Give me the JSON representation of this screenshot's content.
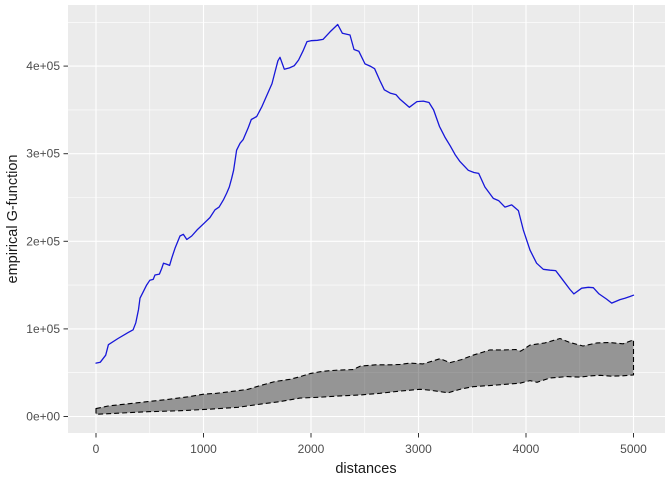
{
  "figure": {
    "background": "#ffffff",
    "panel_background": "#ebebeb",
    "gridline_color": "#ffffff",
    "tick_color": "#333333",
    "tick_label_color": "#4d4d4d"
  },
  "chart_data": {
    "type": "line",
    "title": "",
    "xlabel": "distances",
    "ylabel": "empirical G-function",
    "legend": "none",
    "grid": "major+minor",
    "xlim": [
      -250,
      5250
    ],
    "ylim": [
      -22000,
      470000
    ],
    "x_ticks": [
      0,
      1000,
      2000,
      3000,
      4000,
      5000
    ],
    "x_tick_labels": [
      "0",
      "1000",
      "2000",
      "3000",
      "4000",
      "5000"
    ],
    "y_ticks": [
      0,
      100000,
      200000,
      300000,
      400000
    ],
    "y_tick_labels": [
      "0e+00",
      "1e+05",
      "2e+05",
      "3e+05",
      "4e+05"
    ],
    "x_minor_step": 500,
    "y_minor_step": 50000,
    "ribbon": {
      "description": "simulation envelope band between lower and upper dashed boundaries",
      "fill": "rgba(30,30,30,0.42)",
      "border_color": "#000000",
      "border_style": "dashed"
    },
    "series": [
      {
        "name": "observed-g-function",
        "style": "solid",
        "color": "#1717d9",
        "points": [
          [
            0,
            61000
          ],
          [
            40,
            62000
          ],
          [
            90,
            70000
          ],
          [
            115,
            82000
          ],
          [
            205,
            89000
          ],
          [
            300,
            96000
          ],
          [
            345,
            99000
          ],
          [
            370,
            107000
          ],
          [
            395,
            122000
          ],
          [
            409,
            135000
          ],
          [
            440,
            142500
          ],
          [
            471,
            150000
          ],
          [
            500,
            155500
          ],
          [
            532,
            156500
          ],
          [
            549,
            161500
          ],
          [
            590,
            162500
          ],
          [
            611,
            169000
          ],
          [
            628,
            175000
          ],
          [
            655,
            174000
          ],
          [
            685,
            172500
          ],
          [
            705,
            181000
          ],
          [
            735,
            192000
          ],
          [
            781,
            206000
          ],
          [
            812,
            208000
          ],
          [
            845,
            202000
          ],
          [
            890,
            206000
          ],
          [
            940,
            213000
          ],
          [
            1000,
            220000
          ],
          [
            1060,
            227000
          ],
          [
            1107,
            236000
          ],
          [
            1145,
            239000
          ],
          [
            1184,
            247000
          ],
          [
            1216,
            255000
          ],
          [
            1240,
            262000
          ],
          [
            1262,
            272000
          ],
          [
            1280,
            281000
          ],
          [
            1308,
            304000
          ],
          [
            1340,
            312000
          ],
          [
            1368,
            316000
          ],
          [
            1414,
            329000
          ],
          [
            1445,
            339000
          ],
          [
            1495,
            342500
          ],
          [
            1544,
            354000
          ],
          [
            1591,
            367000
          ],
          [
            1637,
            380000
          ],
          [
            1662,
            392000
          ],
          [
            1692,
            406000
          ],
          [
            1712,
            410000
          ],
          [
            1752,
            396500
          ],
          [
            1800,
            398000
          ],
          [
            1845,
            400500
          ],
          [
            1885,
            407000
          ],
          [
            1925,
            417000
          ],
          [
            1963,
            428000
          ],
          [
            2000,
            429000
          ],
          [
            2060,
            429500
          ],
          [
            2112,
            430500
          ],
          [
            2177,
            439000
          ],
          [
            2248,
            447500
          ],
          [
            2292,
            437500
          ],
          [
            2363,
            435500
          ],
          [
            2400,
            419000
          ],
          [
            2445,
            417000
          ],
          [
            2502,
            402500
          ],
          [
            2550,
            400000
          ],
          [
            2592,
            397000
          ],
          [
            2641,
            383500
          ],
          [
            2682,
            373000
          ],
          [
            2740,
            369000
          ],
          [
            2790,
            367500
          ],
          [
            2830,
            362000
          ],
          [
            2914,
            353000
          ],
          [
            2985,
            359500
          ],
          [
            3045,
            360000
          ],
          [
            3098,
            358500
          ],
          [
            3140,
            350000
          ],
          [
            3195,
            331000
          ],
          [
            3246,
            319000
          ],
          [
            3295,
            309000
          ],
          [
            3340,
            299000
          ],
          [
            3386,
            291000
          ],
          [
            3463,
            281000
          ],
          [
            3515,
            278500
          ],
          [
            3560,
            277500
          ],
          [
            3618,
            262000
          ],
          [
            3696,
            249000
          ],
          [
            3745,
            246500
          ],
          [
            3804,
            239000
          ],
          [
            3867,
            241500
          ],
          [
            3929,
            235000
          ],
          [
            3975,
            213000
          ],
          [
            4037,
            190000
          ],
          [
            4099,
            175000
          ],
          [
            4161,
            168000
          ],
          [
            4225,
            167000
          ],
          [
            4276,
            166500
          ],
          [
            4323,
            159000
          ],
          [
            4409,
            145000
          ],
          [
            4446,
            140000
          ],
          [
            4518,
            146500
          ],
          [
            4580,
            147500
          ],
          [
            4626,
            147000
          ],
          [
            4679,
            140000
          ],
          [
            4750,
            134000
          ],
          [
            4797,
            129500
          ],
          [
            4874,
            133500
          ],
          [
            4920,
            135000
          ],
          [
            4967,
            137000
          ],
          [
            5000,
            138500
          ]
        ]
      },
      {
        "name": "envelope-upper",
        "style": "dashed",
        "color": "#000000",
        "points": [
          [
            0,
            9000
          ],
          [
            112,
            12000
          ],
          [
            298,
            14500
          ],
          [
            484,
            17000
          ],
          [
            670,
            19500
          ],
          [
            856,
            22500
          ],
          [
            1000,
            25500
          ],
          [
            1120,
            26500
          ],
          [
            1290,
            29000
          ],
          [
            1414,
            31000
          ],
          [
            1520,
            35000
          ],
          [
            1665,
            40000
          ],
          [
            1805,
            42500
          ],
          [
            1900,
            45500
          ],
          [
            1991,
            49000
          ],
          [
            2080,
            51000
          ],
          [
            2149,
            52000
          ],
          [
            2250,
            53000
          ],
          [
            2391,
            53500
          ],
          [
            2460,
            57500
          ],
          [
            2600,
            59000
          ],
          [
            2750,
            59000
          ],
          [
            2830,
            59500
          ],
          [
            2921,
            61000
          ],
          [
            3042,
            60000
          ],
          [
            3135,
            63500
          ],
          [
            3200,
            66000
          ],
          [
            3293,
            61500
          ],
          [
            3400,
            65000
          ],
          [
            3507,
            70000
          ],
          [
            3600,
            73500
          ],
          [
            3665,
            76000
          ],
          [
            3800,
            76000
          ],
          [
            3905,
            76500
          ],
          [
            3950,
            74500
          ],
          [
            4037,
            81500
          ],
          [
            4177,
            84000
          ],
          [
            4316,
            89000
          ],
          [
            4409,
            84500
          ],
          [
            4530,
            80500
          ],
          [
            4660,
            84000
          ],
          [
            4780,
            84500
          ],
          [
            4902,
            83000
          ],
          [
            5000,
            87500
          ]
        ]
      },
      {
        "name": "envelope-lower",
        "style": "dashed",
        "color": "#000000",
        "points": [
          [
            0,
            2500
          ],
          [
            205,
            3800
          ],
          [
            484,
            5500
          ],
          [
            763,
            6500
          ],
          [
            1042,
            8200
          ],
          [
            1321,
            10500
          ],
          [
            1526,
            14000
          ],
          [
            1712,
            17000
          ],
          [
            1898,
            21000
          ],
          [
            2084,
            22000
          ],
          [
            2270,
            23500
          ],
          [
            2456,
            24500
          ],
          [
            2642,
            26500
          ],
          [
            2828,
            29000
          ],
          [
            3014,
            31000
          ],
          [
            3107,
            30000
          ],
          [
            3274,
            27000
          ],
          [
            3400,
            31500
          ],
          [
            3507,
            34000
          ],
          [
            3730,
            36000
          ],
          [
            3944,
            38000
          ],
          [
            4037,
            41000
          ],
          [
            4102,
            39000
          ],
          [
            4223,
            44000
          ],
          [
            4381,
            45500
          ],
          [
            4500,
            45000
          ],
          [
            4610,
            46500
          ],
          [
            4688,
            47000
          ],
          [
            4800,
            46000
          ],
          [
            4900,
            46500
          ],
          [
            5000,
            47500
          ]
        ]
      }
    ]
  }
}
